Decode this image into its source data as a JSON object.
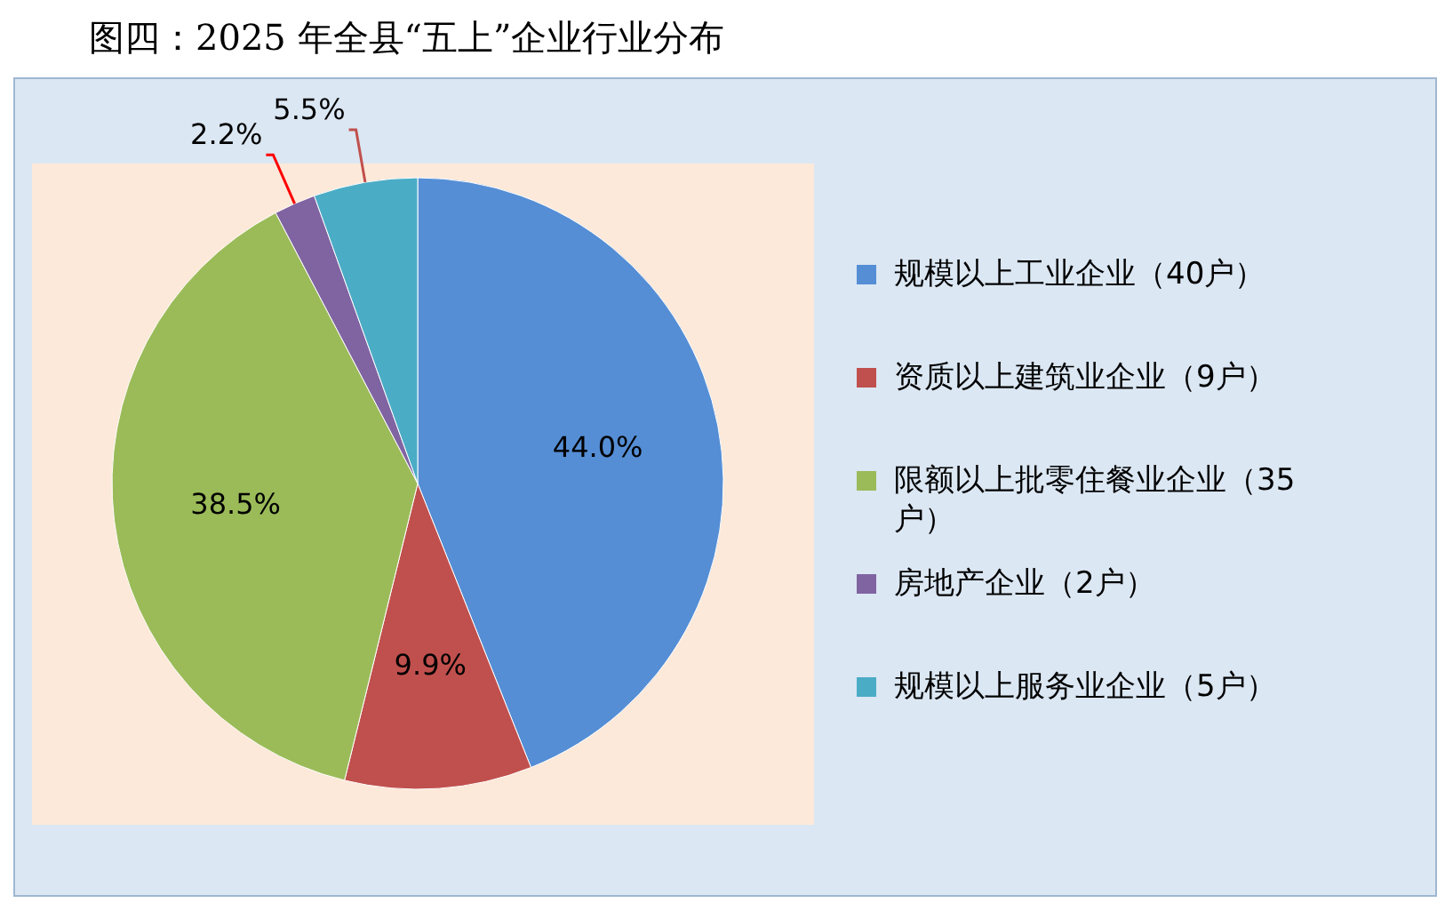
{
  "chart_data": {
    "type": "pie",
    "title": "图四：2025 年全县“五上”企业行业分布",
    "categories": [
      "规模以上工业企业（40户）",
      "资质以上建筑业企业（9户）",
      "限额以上批零住餐业企业（35户）",
      "房地产企业（2户）",
      "规模以上服务业企业（5户）"
    ],
    "values": [
      44.0,
      9.9,
      38.5,
      2.2,
      5.5
    ],
    "value_labels": [
      "44.0%",
      "9.9%",
      "38.5%",
      "2.2%",
      "5.5%"
    ],
    "colors": [
      "#558ed5",
      "#c0504d",
      "#9bbb59",
      "#8064a2",
      "#4bacc6"
    ],
    "legend": "right"
  }
}
